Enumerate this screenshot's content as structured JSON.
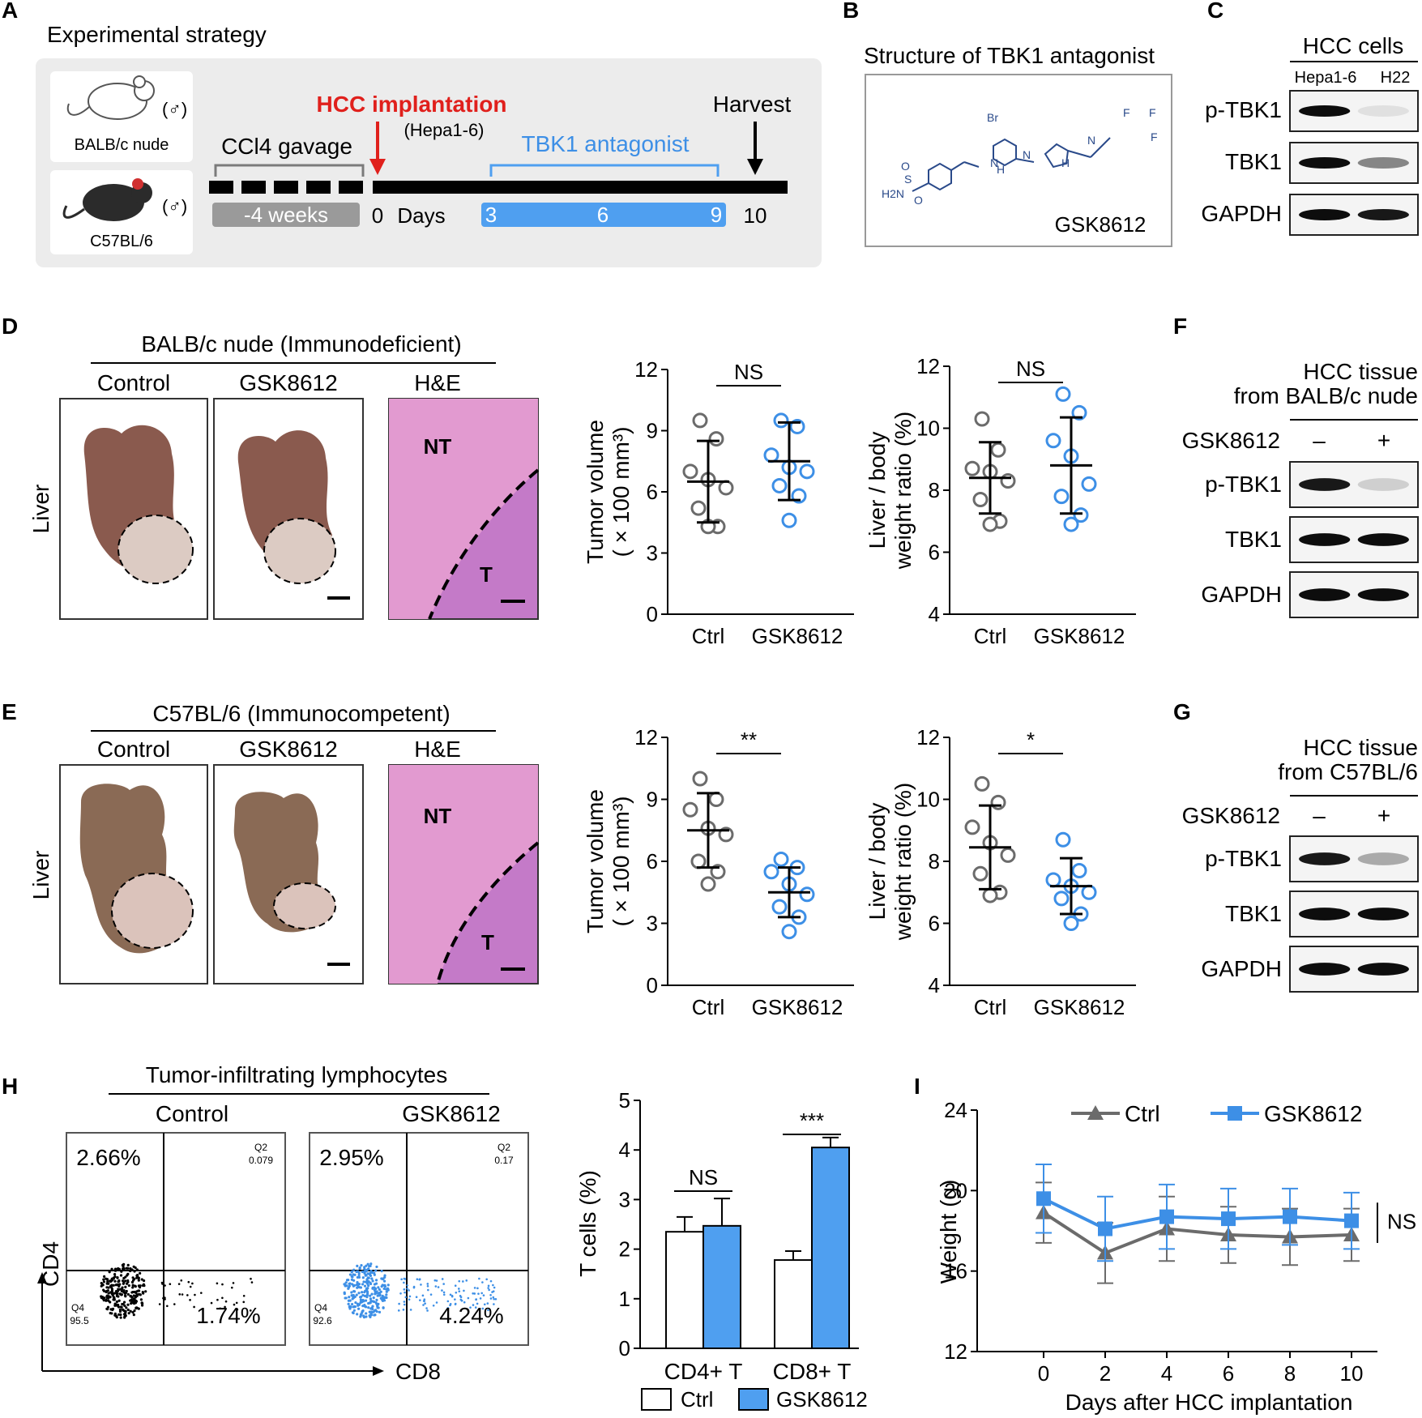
{
  "colors": {
    "ctrl": "#6b6b6b",
    "gsk": "#3d8fe6",
    "gsk_fill": "#4f9ff0",
    "red": "#e0201c",
    "panel_bg": "#ececec"
  },
  "panel_letters": [
    "A",
    "B",
    "C",
    "D",
    "E",
    "F",
    "G",
    "H",
    "I"
  ],
  "panelA": {
    "title": "Experimental strategy",
    "mouse1": "BALB/c nude",
    "mouse2": "C57BL/6",
    "sex": "(♂)",
    "ccl4": "CCl4 gavage",
    "weeks": "-4 weeks",
    "hcc": "HCC implantation",
    "cell": "(Hepa1-6)",
    "antagonist": "TBK1 antagonist",
    "harvest": "Harvest",
    "day0": "0",
    "days": "Days",
    "d3": "3",
    "d6": "6",
    "d9": "9",
    "d10": "10",
    "mouse_icon_1": "white-mouse-icon",
    "mouse_icon_2": "black-mouse-icon"
  },
  "panelB": {
    "title": "Structure of TBK1 antagonist",
    "compound": "GSK8612",
    "atoms": {
      "br": "Br",
      "nh2": "H2N",
      "s": "S",
      "o": "O",
      "n": "N",
      "h": "H",
      "f": "F"
    }
  },
  "panelC": {
    "title": "HCC cells",
    "lanes": [
      "Hepa1-6",
      "H22"
    ],
    "rows": [
      "p-TBK1",
      "TBK1",
      "GAPDH"
    ]
  },
  "panelD": {
    "title": "BALB/c nude (Immunodeficient)",
    "columns": [
      "Control",
      "GSK8612",
      "H&E"
    ],
    "side": "Liver",
    "he_nt": "NT",
    "he_t": "T"
  },
  "panelE": {
    "title": "C57BL/6 (Immunocompetent)",
    "columns": [
      "Control",
      "GSK8612",
      "H&E"
    ],
    "side": "Liver",
    "he_nt": "NT",
    "he_t": "T"
  },
  "panelF": {
    "title1": "HCC tissue",
    "title2": "from BALB/c nude",
    "treat": "GSK8612",
    "minus": "–",
    "plus": "+",
    "rows": [
      "p-TBK1",
      "TBK1",
      "GAPDH"
    ]
  },
  "panelG": {
    "title1": "HCC tissue",
    "title2": "from C57BL/6",
    "treat": "GSK8612",
    "minus": "–",
    "plus": "+",
    "rows": [
      "p-TBK1",
      "TBK1",
      "GAPDH"
    ]
  },
  "panelH": {
    "title": "Tumor-infiltrating lymphocytes",
    "plots": [
      {
        "name": "Control",
        "q1": "2.66%",
        "q2": "Q2",
        "q2v": "0.079",
        "q3": "1.74%",
        "q4": "Q4",
        "q4v": "95.5"
      },
      {
        "name": "GSK8612",
        "q1": "2.95%",
        "q2": "Q2",
        "q2v": "0.17",
        "q3": "4.24%",
        "q4": "Q4",
        "q4v": "92.6"
      }
    ],
    "xaxis": "CD8",
    "yaxis": "CD4"
  },
  "chart_data": [
    {
      "id": "D-volume",
      "type": "scatter",
      "ylabel": "Tumor volume",
      "ylabel2": "( × 100 mm³)",
      "ylim": [
        0,
        12
      ],
      "yticks": [
        0,
        3,
        6,
        9,
        12
      ],
      "categories": [
        "Ctrl",
        "GSK8612"
      ],
      "sig": "NS",
      "series": [
        {
          "name": "Ctrl",
          "points": [
            9.5,
            8.6,
            7.0,
            6.6,
            6.2,
            5.2,
            4.3,
            4.3
          ],
          "mean": 6.5,
          "sd": 2.0
        },
        {
          "name": "GSK8612",
          "points": [
            9.5,
            9.2,
            7.8,
            7.2,
            7.0,
            6.3,
            5.8,
            4.6
          ],
          "mean": 7.5,
          "sd": 1.9
        }
      ]
    },
    {
      "id": "D-ratio",
      "type": "scatter",
      "ylabel": "Liver / body",
      "ylabel2": "weight ratio (%)",
      "ylim": [
        4,
        12
      ],
      "yticks": [
        4,
        6,
        8,
        10,
        12
      ],
      "categories": [
        "Ctrl",
        "GSK8612"
      ],
      "sig": "NS",
      "series": [
        {
          "name": "Ctrl",
          "points": [
            10.3,
            9.3,
            8.7,
            8.6,
            8.3,
            7.7,
            7.0,
            6.9
          ],
          "mean": 8.4,
          "sd": 1.15
        },
        {
          "name": "GSK8612",
          "points": [
            11.1,
            10.5,
            9.6,
            9.1,
            8.2,
            7.8,
            7.2,
            6.9
          ],
          "mean": 8.8,
          "sd": 1.55
        }
      ]
    },
    {
      "id": "E-volume",
      "type": "scatter",
      "ylabel": "Tumor volume",
      "ylabel2": "( × 100 mm³)",
      "ylim": [
        0,
        12
      ],
      "yticks": [
        0,
        3,
        6,
        9,
        12
      ],
      "categories": [
        "Ctrl",
        "GSK8612"
      ],
      "sig": "**",
      "series": [
        {
          "name": "Ctrl",
          "points": [
            10.0,
            9.0,
            8.5,
            7.6,
            7.3,
            6.0,
            5.5,
            4.9
          ],
          "mean": 7.5,
          "sd": 1.8
        },
        {
          "name": "GSK8612",
          "points": [
            6.1,
            5.7,
            5.5,
            4.9,
            4.4,
            3.8,
            3.3,
            2.6
          ],
          "mean": 4.5,
          "sd": 1.2
        }
      ]
    },
    {
      "id": "E-ratio",
      "type": "scatter",
      "ylabel": "Liver / body",
      "ylabel2": "weight ratio (%)",
      "ylim": [
        4,
        12
      ],
      "yticks": [
        4,
        6,
        8,
        10,
        12
      ],
      "categories": [
        "Ctrl",
        "GSK8612"
      ],
      "sig": "*",
      "series": [
        {
          "name": "Ctrl",
          "points": [
            10.5,
            9.9,
            9.1,
            8.6,
            8.2,
            7.6,
            7.0,
            6.9
          ],
          "mean": 8.45,
          "sd": 1.35
        },
        {
          "name": "GSK8612",
          "points": [
            8.7,
            7.7,
            7.4,
            7.2,
            7.0,
            6.8,
            6.3,
            6.0
          ],
          "mean": 7.2,
          "sd": 0.9
        }
      ]
    },
    {
      "id": "H-bars",
      "type": "bar",
      "ylabel": "T cells (%)",
      "ylim": [
        0,
        5
      ],
      "yticks": [
        0,
        1,
        2,
        3,
        4,
        5
      ],
      "categories": [
        "CD4+ T",
        "CD8+ T"
      ],
      "sigs": [
        "NS",
        "***"
      ],
      "series": [
        {
          "name": "Ctrl",
          "values": [
            2.35,
            1.78
          ],
          "errors": [
            0.3,
            0.18
          ]
        },
        {
          "name": "GSK8612",
          "values": [
            2.47,
            4.05
          ],
          "errors": [
            0.55,
            0.2
          ]
        }
      ]
    },
    {
      "id": "I-weight",
      "type": "line",
      "ylabel": "Weight (g)",
      "xlabel": "Days after HCC implantation",
      "ylim": [
        12,
        24
      ],
      "yticks": [
        12,
        16,
        20,
        24
      ],
      "x": [
        0,
        2,
        4,
        6,
        8,
        10
      ],
      "sig": "NS",
      "series": [
        {
          "name": "Ctrl",
          "values": [
            18.9,
            16.9,
            18.1,
            17.8,
            17.7,
            17.8
          ],
          "errors": [
            1.5,
            1.5,
            1.6,
            1.4,
            1.4,
            1.3
          ]
        },
        {
          "name": "GSK8612",
          "values": [
            19.6,
            18.1,
            18.7,
            18.6,
            18.7,
            18.5
          ],
          "errors": [
            1.7,
            1.6,
            1.6,
            1.5,
            1.4,
            1.4
          ]
        }
      ]
    }
  ]
}
